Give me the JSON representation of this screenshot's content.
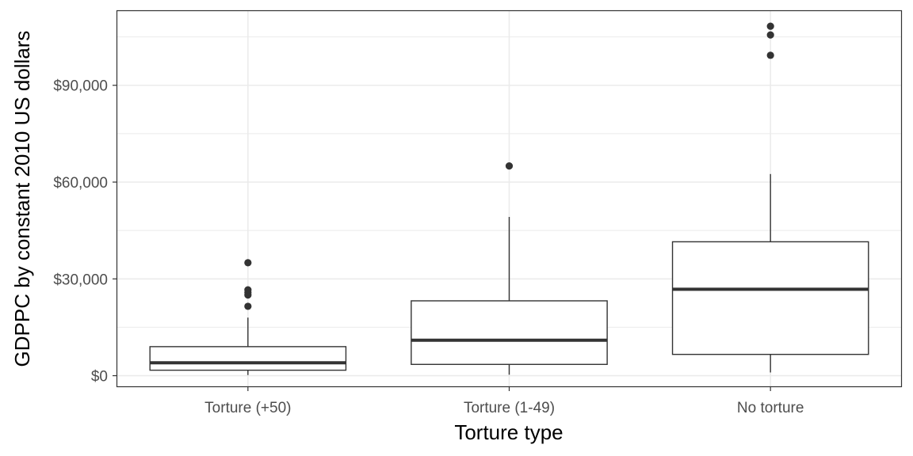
{
  "chart_data": {
    "type": "boxplot",
    "xlabel": "Torture type",
    "ylabel": "GDPPC by constant 2010 US dollars",
    "ylim": [
      -3300,
      113000
    ],
    "yticks": [
      0,
      30000,
      60000,
      90000
    ],
    "ytick_labels": [
      "$0",
      "$30,000",
      "$60,000",
      "$90,000"
    ],
    "grid": true,
    "categories": [
      "Torture (+50)",
      "Torture (1-49)",
      "No torture"
    ],
    "boxes": [
      {
        "category": "Torture (+50)",
        "whisker_low": 200,
        "q1": 1700,
        "median": 4000,
        "q3": 9000,
        "whisker_high": 18000,
        "outliers": [
          21500,
          25000,
          25800,
          26600,
          35000
        ]
      },
      {
        "category": "Torture (1-49)",
        "whisker_low": 300,
        "q1": 3500,
        "median": 11000,
        "q3": 23200,
        "whisker_high": 49200,
        "outliers": [
          65000
        ]
      },
      {
        "category": "No torture",
        "whisker_low": 1000,
        "q1": 6600,
        "median": 26800,
        "q3": 41500,
        "whisker_high": 62500,
        "outliers": [
          99300,
          105600,
          108300
        ]
      }
    ],
    "colors": {
      "box_line": "#333333",
      "grid": "#ebebeb",
      "panel_border": "#333333",
      "outlier": "#333333"
    }
  }
}
